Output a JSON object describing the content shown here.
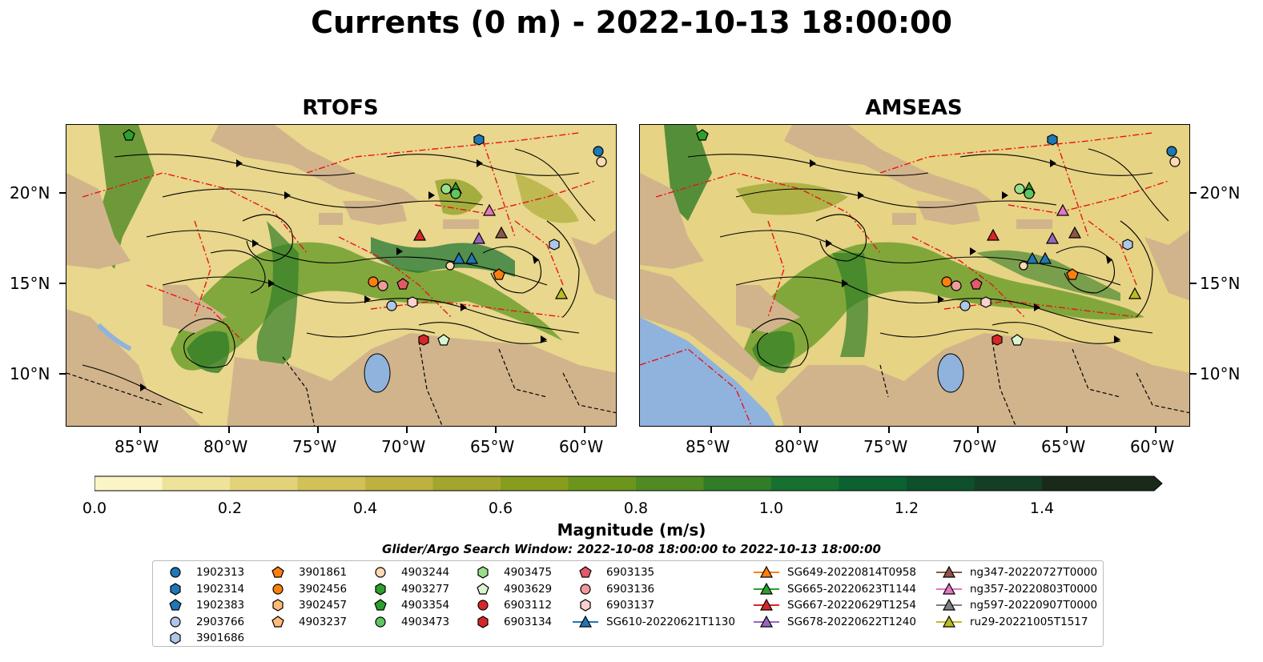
{
  "title": "Currents (0 m) - 2022-10-13 18:00:00",
  "panels": [
    {
      "title": "RTOFS"
    },
    {
      "title": "AMSEAS"
    }
  ],
  "x_ticks": [
    "85°W",
    "80°W",
    "75°W",
    "70°W",
    "65°W",
    "60°W"
  ],
  "y_ticks": [
    "20°N",
    "15°N",
    "10°N"
  ],
  "colorbar": {
    "label": "Magnitude (m/s)",
    "ticks": [
      "0.0",
      "0.2",
      "0.4",
      "0.6",
      "0.8",
      "1.0",
      "1.2",
      "1.4"
    ],
    "colors": [
      "#fbf5c6",
      "#efe29b",
      "#e2d27a",
      "#d2c058",
      "#bfb13f",
      "#a4a52c",
      "#889d1e",
      "#6c951c",
      "#4f8a23",
      "#317d27",
      "#16702f",
      "#0b6130",
      "#0d502b",
      "#133f25",
      "#173320",
      "#1a2a1a"
    ]
  },
  "search_window": "Glider/Argo Search Window: 2022-10-08 18:00:00 to 2022-10-13 18:00:00",
  "legend": [
    {
      "label": "1902313",
      "color": "#1f77b4",
      "marker": "circle"
    },
    {
      "label": "1902314",
      "color": "#1f77b4",
      "marker": "hexagon"
    },
    {
      "label": "1902383",
      "color": "#1f77b4",
      "marker": "pentagon"
    },
    {
      "label": "2903766",
      "color": "#aec7e8",
      "marker": "circle"
    },
    {
      "label": "3901686",
      "color": "#aec7e8",
      "marker": "hexagon"
    },
    {
      "label": "3901861",
      "color": "#ff7f0e",
      "marker": "pentagon"
    },
    {
      "label": "3902456",
      "color": "#ff7f0e",
      "marker": "circle"
    },
    {
      "label": "3902457",
      "color": "#ffbb78",
      "marker": "hexagon"
    },
    {
      "label": "4903237",
      "color": "#ffbb78",
      "marker": "pentagon"
    },
    {
      "label": "4903244",
      "color": "#ffd9b3",
      "marker": "circle"
    },
    {
      "label": "4903277",
      "color": "#2ca02c",
      "marker": "hexagon"
    },
    {
      "label": "4903354",
      "color": "#2ca02c",
      "marker": "pentagon"
    },
    {
      "label": "4903473",
      "color": "#5fc65f",
      "marker": "circle"
    },
    {
      "label": "4903475",
      "color": "#98df8a",
      "marker": "hexagon"
    },
    {
      "label": "4903629",
      "color": "#d8f5d0",
      "marker": "pentagon"
    },
    {
      "label": "6903112",
      "color": "#d62728",
      "marker": "circle"
    },
    {
      "label": "6903134",
      "color": "#d62728",
      "marker": "hexagon"
    },
    {
      "label": "6903135",
      "color": "#e05a6a",
      "marker": "pentagon"
    },
    {
      "label": "6903136",
      "color": "#f09a9c",
      "marker": "circle"
    },
    {
      "label": "6903137",
      "color": "#fbd0d0",
      "marker": "hexagon"
    },
    {
      "label": "SG610-20220621T1130",
      "color": "#1f77b4",
      "marker": "triangle"
    },
    {
      "label": "SG649-20220814T0958",
      "color": "#ff7f0e",
      "marker": "triangle"
    },
    {
      "label": "SG665-20220623T1144",
      "color": "#2ca02c",
      "marker": "triangle"
    },
    {
      "label": "SG667-20220629T1254",
      "color": "#d62728",
      "marker": "triangle"
    },
    {
      "label": "SG678-20220622T1240",
      "color": "#9467bd",
      "marker": "triangle"
    },
    {
      "label": "ng347-20220727T0000",
      "color": "#8c564b",
      "marker": "triangle"
    },
    {
      "label": "ng357-20220803T0000",
      "color": "#e377c2",
      "marker": "triangle"
    },
    {
      "label": "ng597-20220907T0000",
      "color": "#7f7f7f",
      "marker": "triangle"
    },
    {
      "label": "ru29-20221005T1517",
      "color": "#bcbd22",
      "marker": "triangle"
    }
  ]
}
